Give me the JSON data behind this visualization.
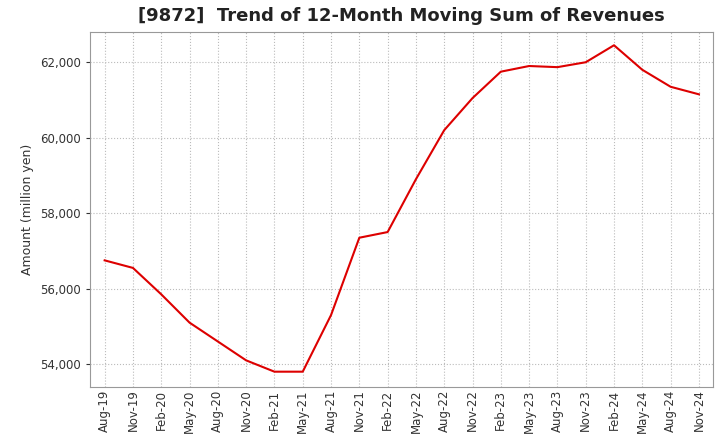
{
  "title": "[9872]  Trend of 12-Month Moving Sum of Revenues",
  "ylabel": "Amount (million yen)",
  "line_color": "#dd0000",
  "background_color": "#ffffff",
  "plot_bg_color": "#ffffff",
  "x_labels": [
    "Aug-19",
    "Nov-19",
    "Feb-20",
    "May-20",
    "Aug-20",
    "Nov-20",
    "Feb-21",
    "May-21",
    "Aug-21",
    "Nov-21",
    "Feb-22",
    "May-22",
    "Aug-22",
    "Nov-22",
    "Feb-23",
    "May-23",
    "Aug-23",
    "Nov-23",
    "Feb-24",
    "May-24",
    "Aug-24",
    "Nov-24"
  ],
  "y_values": [
    56750,
    56550,
    55850,
    55100,
    54600,
    54100,
    53800,
    53800,
    55300,
    57350,
    57500,
    58900,
    60200,
    61050,
    61750,
    61900,
    61870,
    62000,
    62450,
    61800,
    61350,
    61150
  ],
  "ylim": [
    53400,
    62800
  ],
  "yticks": [
    54000,
    56000,
    58000,
    60000,
    62000
  ],
  "grid_color": "#bbbbbb",
  "title_fontsize": 13,
  "label_fontsize": 9,
  "tick_fontsize": 8.5
}
